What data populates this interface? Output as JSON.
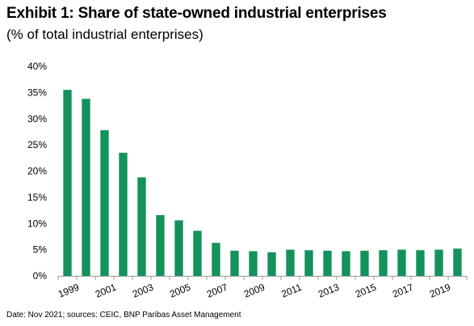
{
  "title": "Exhibit 1: Share of state-owned industrial enterprises",
  "subtitle": "(% of total industrial enterprises)",
  "source": "Date: Nov 2021; sources: CEIC, BNP Paribas Asset Management",
  "chart_data": {
    "type": "bar",
    "title": "Exhibit 1: Share of state-owned industrial enterprises",
    "subtitle": "(% of total industrial enterprises)",
    "xlabel": "",
    "ylabel": "",
    "categories": [
      "1999",
      "2000",
      "2001",
      "2002",
      "2003",
      "2004",
      "2005",
      "2006",
      "2007",
      "2008",
      "2009",
      "2010",
      "2011",
      "2012",
      "2013",
      "2014",
      "2015",
      "2016",
      "2017",
      "2018",
      "2019",
      "2020"
    ],
    "values": [
      35.5,
      33.8,
      27.8,
      23.5,
      18.8,
      11.6,
      10.6,
      8.6,
      6.3,
      4.8,
      4.7,
      4.5,
      5.0,
      4.9,
      4.8,
      4.7,
      4.8,
      4.9,
      5.0,
      4.9,
      5.0,
      5.2
    ],
    "x_tick_labels": [
      "1999",
      "2001",
      "2003",
      "2005",
      "2007",
      "2009",
      "2011",
      "2013",
      "2015",
      "2017",
      "2019"
    ],
    "y_tick_labels": [
      "0%",
      "5%",
      "10%",
      "15%",
      "20%",
      "25%",
      "30%",
      "35%",
      "40%"
    ],
    "ylim": [
      0,
      40
    ],
    "grid": false,
    "legend": "none",
    "bar_color": "#13925b"
  }
}
